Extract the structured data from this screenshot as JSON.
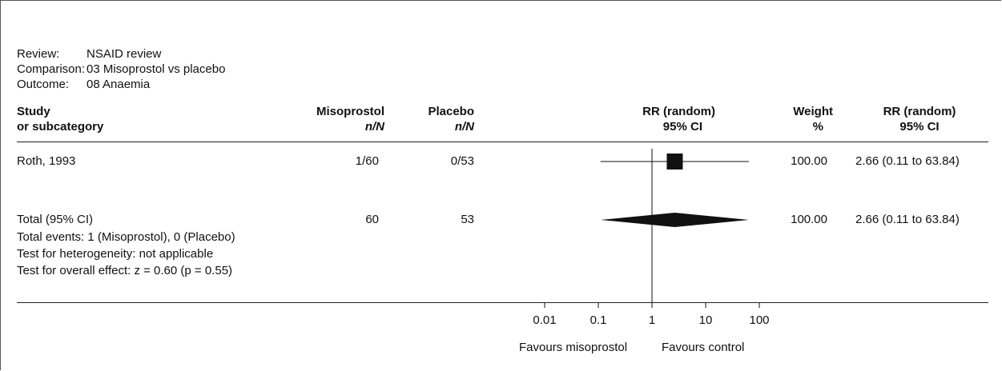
{
  "meta": {
    "review_label": "Review:",
    "review_value": "NSAID review",
    "comparison_label": "Comparison:",
    "comparison_value": "03 Misoprostol vs placebo",
    "outcome_label": "Outcome:",
    "outcome_value": "08 Anaemia"
  },
  "headers": {
    "study_line1": "Study",
    "study_line2": "or subcategory",
    "treat_line1": "Misoprostol",
    "treat_line2": "n/N",
    "control_line1": "Placebo",
    "control_line2": "n/N",
    "plot_line1": "RR (random)",
    "plot_line2": "95% CI",
    "weight_line1": "Weight",
    "weight_line2": "%",
    "rr_line1": "RR (random)",
    "rr_line2": "95% CI"
  },
  "studies": [
    {
      "name": "Roth, 1993",
      "treatment": "1/60",
      "control": "0/53",
      "weight": "100.00",
      "rr_text": "2.66 (0.11 to 63.84)"
    }
  ],
  "total": {
    "name": "Total (95% CI)",
    "treatment": "60",
    "control": "53",
    "weight": "100.00",
    "rr_text": "2.66 (0.11 to 63.84)",
    "events": "Total events: 1 (Misoprostol), 0 (Placebo)",
    "heterogeneity": "Test for heterogeneity: not applicable",
    "overall_effect": "Test for overall effect: z = 0.60 (p = 0.55)"
  },
  "axis": {
    "tick_labels": [
      "0.01",
      "0.1",
      "1",
      "10",
      "100"
    ],
    "favours_left": "Favours misoprostol",
    "favours_right": "Favours control"
  },
  "chart_data": {
    "type": "forest",
    "scale": "log",
    "xlim": [
      0.01,
      100
    ],
    "ticks": [
      0.01,
      0.1,
      1,
      10,
      100
    ],
    "reference_line": 1,
    "studies": [
      {
        "name": "Roth, 1993",
        "estimate": 2.66,
        "lower": 0.11,
        "upper": 63.84,
        "weight": 100.0
      }
    ],
    "pooled": {
      "name": "Total (95% CI)",
      "estimate": 2.66,
      "lower": 0.11,
      "upper": 63.84
    },
    "colors": {
      "marker": "#111111",
      "lines": "#111111"
    }
  }
}
